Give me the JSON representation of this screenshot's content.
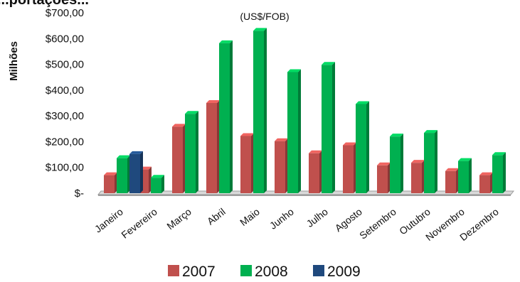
{
  "chart_data": {
    "type": "bar",
    "title_fragment": "...portações...",
    "subtitle": "(US$/FOB)",
    "ylabel": "Milhões",
    "xlabel": "",
    "ylim": [
      0,
      700
    ],
    "yticks": [
      {
        "value": 700,
        "label": "$700,00"
      },
      {
        "value": 600,
        "label": "$600,00"
      },
      {
        "value": 500,
        "label": "$500,00"
      },
      {
        "value": 400,
        "label": "$400,00"
      },
      {
        "value": 300,
        "label": "$300,00"
      },
      {
        "value": 200,
        "label": "$200,00"
      },
      {
        "value": 100,
        "label": "$100,00"
      },
      {
        "value": 0,
        "label": "$-"
      }
    ],
    "categories": [
      "Janeiro",
      "Fevereiro",
      "Março",
      "Abril",
      "Maio",
      "Junho",
      "Julho",
      "Agosto",
      "Setembro",
      "Outubro",
      "Novembro",
      "Dezembro"
    ],
    "series": [
      {
        "name": "2007",
        "color": "#c0504d",
        "values": [
          70,
          92,
          258,
          350,
          222,
          202,
          155,
          186,
          108,
          118,
          86,
          70
        ]
      },
      {
        "name": "2008",
        "color": "#00b050",
        "values": [
          136,
          60,
          308,
          582,
          630,
          470,
          498,
          346,
          220,
          234,
          125,
          148
        ]
      },
      {
        "name": "2009",
        "color": "#1f497d",
        "values": [
          152,
          null,
          null,
          null,
          null,
          null,
          null,
          null,
          null,
          null,
          null,
          null
        ]
      }
    ],
    "grid": false,
    "legend_position": "bottom"
  }
}
